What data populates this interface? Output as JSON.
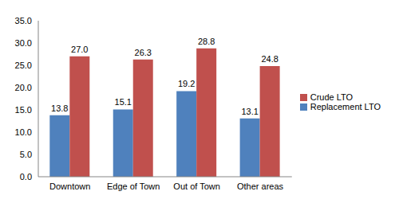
{
  "chart_data": {
    "type": "bar",
    "categories": [
      "Downtown",
      "Edge of Town",
      "Out of Town",
      "Other areas"
    ],
    "series": [
      {
        "name": "Replacement LTO",
        "color": "#4f81bd",
        "values": [
          13.8,
          15.1,
          19.2,
          13.1
        ],
        "value_labels": [
          "13.8",
          "15.1",
          "19.2",
          "13.1"
        ]
      },
      {
        "name": "Crude LTO",
        "color": "#c0504d",
        "values": [
          27.0,
          26.3,
          28.8,
          24.8
        ],
        "value_labels": [
          "27.0",
          "26.3",
          "28.8",
          "24.8"
        ]
      }
    ],
    "ylim": [
      0,
      35
    ],
    "yticks": [
      {
        "value": 0,
        "label": "0.0"
      },
      {
        "value": 5,
        "label": "5.0"
      },
      {
        "value": 10,
        "label": "10.0"
      },
      {
        "value": 15,
        "label": "15.0"
      },
      {
        "value": 20,
        "label": "20.0"
      },
      {
        "value": 25,
        "label": "25.0"
      },
      {
        "value": 30,
        "label": "30.0"
      },
      {
        "value": 35,
        "label": "35.0"
      }
    ],
    "grid": false,
    "legend": "right",
    "data_labels": true
  }
}
